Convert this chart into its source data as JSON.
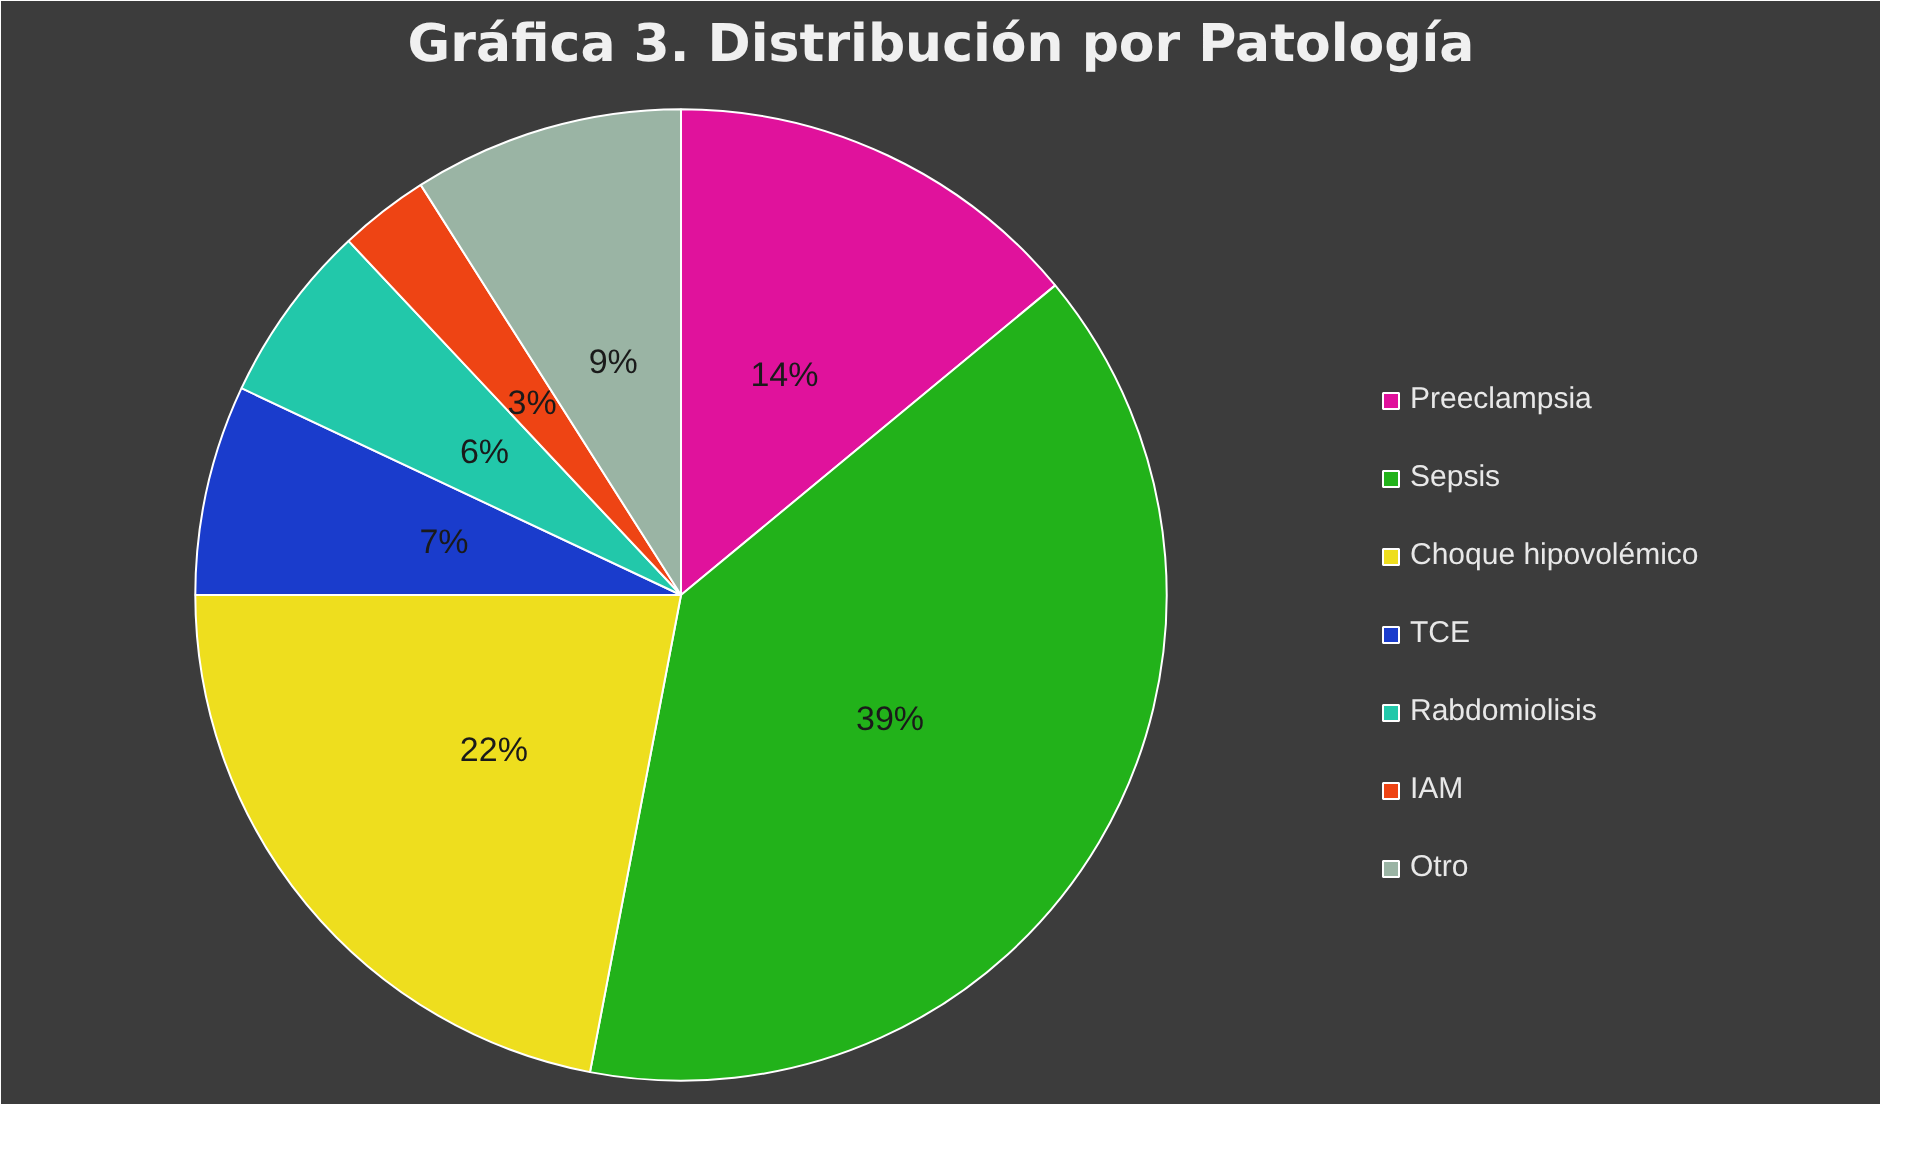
{
  "chart_data": {
    "type": "pie",
    "title": "Gráfica 3. Distribución por Patología",
    "categories": [
      "Preeclampsia",
      "Sepsis",
      "Choque hipovolémico",
      "TCE",
      "Rabdomiolisis",
      "IAM",
      "Otro"
    ],
    "values": [
      14,
      39,
      22,
      7,
      6,
      3,
      9
    ],
    "colors": [
      "#e0129c",
      "#22b21a",
      "#eede1e",
      "#1a3ccc",
      "#22c8aa",
      "#ee4414",
      "#9ab4a4"
    ],
    "value_labels": [
      "14%",
      "39%",
      "22%",
      "7%",
      "6%",
      "3%",
      "9%"
    ],
    "legend": "right"
  }
}
